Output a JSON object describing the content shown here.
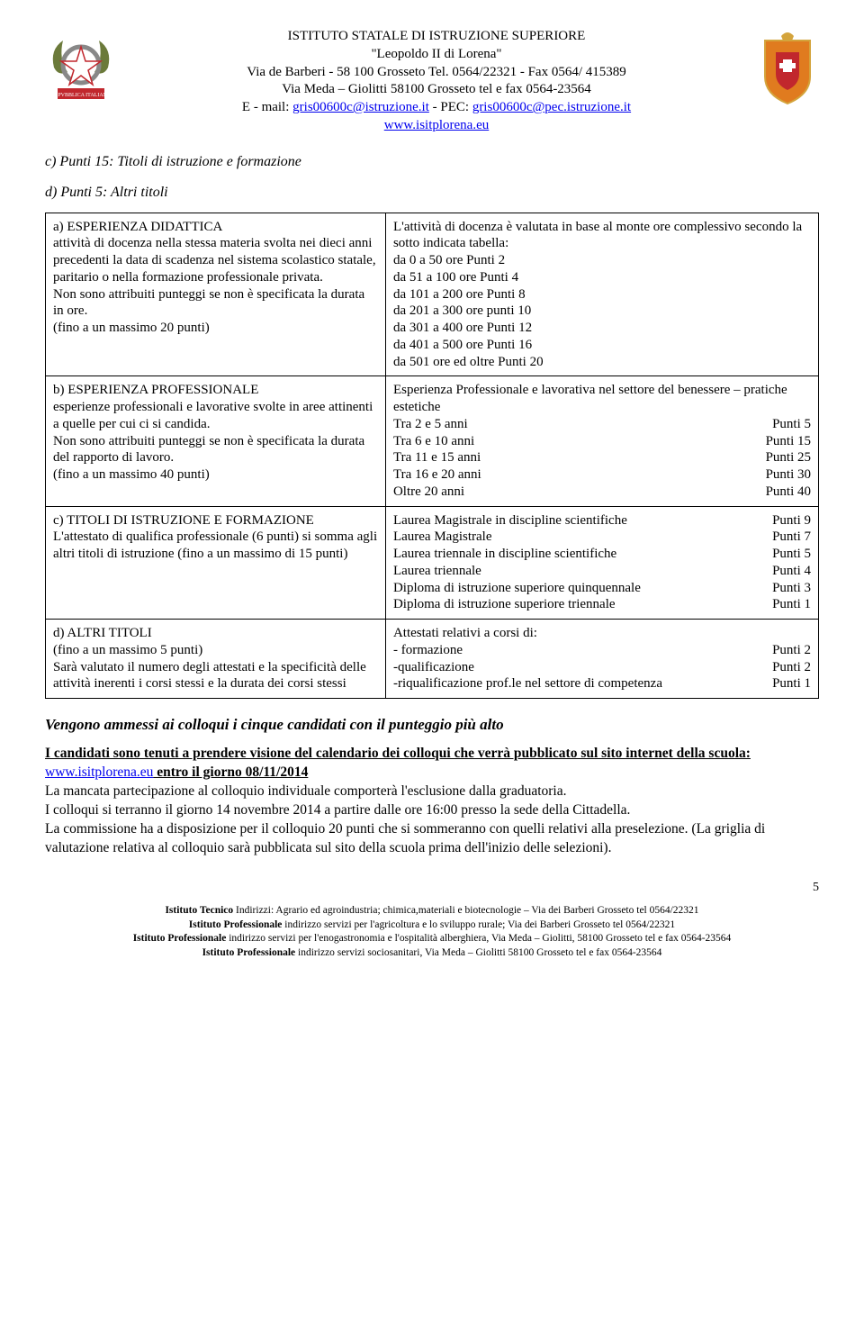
{
  "header": {
    "line1": "ISTITUTO STATALE DI ISTRUZIONE SUPERIORE",
    "line2": "\"Leopoldo II di Lorena\"",
    "line3": "Via de Barberi - 58 100 Grosseto Tel. 0564/22321 - Fax 0564/ 415389",
    "line4": "Via Meda – Giolitti 58100 Grosseto tel e fax 0564-23564",
    "line5_pre": "E - mail: ",
    "line5_email": "gris00600c@istruzione.it",
    "line5_mid": " - PEC: ",
    "line5_email2": "gris00600c@pec.istruzione.it",
    "line6": "www.isitplorena.eu"
  },
  "section_c": "c) Punti 15: Titoli di istruzione e formazione",
  "section_d": "d) Punti 5: Altri titoli",
  "row_a": {
    "left_title": "a) ESPERIENZA DIDATTICA",
    "left_body": "attività di docenza nella stessa materia svolta nei dieci anni precedenti la data di scadenza nel sistema scolastico statale, paritario o nella formazione professionale privata.\nNon sono attribuiti punteggi se non è specificata la durata in ore.\n(fino a un massimo 20 punti)",
    "right_intro": "L'attività di docenza è valutata in base al monte ore complessivo secondo la sotto indicata tabella:",
    "right_items": [
      "da 0 a 50 ore Punti 2",
      "da 51 a 100 ore Punti 4",
      "da 101 a 200 ore Punti 8",
      "da 201 a 300 ore punti 10",
      "da 301 a 400 ore Punti 12",
      "da 401 a 500 ore Punti 16",
      "da 501 ore ed oltre Punti 20"
    ]
  },
  "row_b": {
    "left_title": "b) ESPERIENZA PROFESSIONALE",
    "left_body": "esperienze professionali e lavorative svolte in aree attinenti a quelle per cui ci si candida.\nNon sono attribuiti punteggi se non è specificata la durata del rapporto di lavoro.\n(fino a un massimo 40 punti)",
    "right_intro": "Esperienza Professionale e lavorativa nel settore del benessere – pratiche estetiche",
    "right_rows": [
      {
        "label": "Tra 2 e 5 anni",
        "pts": "Punti 5"
      },
      {
        "label": "Tra 6 e 10 anni",
        "pts": "Punti 15"
      },
      {
        "label": "Tra 11 e 15 anni",
        "pts": "Punti 25"
      },
      {
        "label": "Tra 16 e 20 anni",
        "pts": "Punti 30"
      },
      {
        "label": "Oltre 20 anni",
        "pts": "Punti 40"
      }
    ]
  },
  "row_c": {
    "left_title": "c) TITOLI DI ISTRUZIONE E FORMAZIONE",
    "left_body": "L'attestato di qualifica professionale  (6 punti) si somma agli altri titoli di istruzione (fino a un massimo di 15 punti)",
    "right_rows": [
      {
        "label": "Laurea Magistrale in discipline scientifiche",
        "pts": "Punti 9"
      },
      {
        "label": "Laurea Magistrale",
        "pts": "Punti 7"
      },
      {
        "label": "Laurea triennale in discipline scientifiche",
        "pts": "Punti 5"
      },
      {
        "label": "Laurea triennale",
        "pts": "Punti 4"
      },
      {
        "label": "Diploma di istruzione superiore quinquennale",
        "pts": "Punti 3"
      },
      {
        "label": "Diploma di istruzione superiore triennale",
        "pts": "Punti 1"
      }
    ]
  },
  "row_d": {
    "left_title": "d) ALTRI TITOLI",
    "left_body": "(fino a un massimo 5 punti)\nSarà valutato il numero degli attestati e la specificità delle attività inerenti i corsi stessi e la durata dei corsi stessi",
    "right_intro": " Attestati relativi a corsi di:",
    "right_rows": [
      {
        "label": "- formazione",
        "pts": "Punti 2"
      },
      {
        "label": "-qualificazione",
        "pts": "Punti 2"
      },
      {
        "label": "-riqualificazione prof.le nel settore di competenza",
        "pts": "Punti 1"
      }
    ]
  },
  "admit_line": "Vengono ammessi ai colloqui i cinque candidati con il punteggio più alto",
  "candidates": {
    "u1": "I candidati sono tenuti a prendere visione del calendario dei colloqui che verrà pubblicato sul sito internet della scuola: ",
    "u_link": "www.isitplorena.eu",
    "u2": " entro il giorno 08/11/2014",
    "p1": "La mancata partecipazione al colloquio individuale comporterà l'esclusione dalla graduatoria.",
    "p2": "I  colloqui si terranno il giorno 14 novembre 2014 a partire dalle ore 16:00 presso la sede della Cittadella.",
    "p3": "La commissione ha a disposizione per il colloquio 20 punti che  si sommeranno con quelli relativi alla preselezione. (La griglia di valutazione relativa al colloquio sarà pubblicata sul sito della scuola prima dell'inizio delle selezioni)."
  },
  "page_num": "5",
  "footer": {
    "l1a": "Istituto Tecnico ",
    "l1b": "Indirizzi: Agrario ed agroindustria;  chimica,materiali e biotecnologie – Via dei Barberi Grosseto tel 0564/22321",
    "l2a": "Istituto Professionale ",
    "l2b": "indirizzo servizi per l'agricoltura e lo sviluppo  rurale; Via dei Barberi Grosseto tel 0564/22321",
    "l3a": "Istituto Professionale ",
    "l3b": "indirizzo servizi per l'enogastronomia e l'ospitalità alberghiera, Via Meda – Giolitti, 58100 Grosseto tel e fax 0564-23564",
    "l4a": "Istituto Professionale ",
    "l4b": "indirizzo servizi sociosanitari, Via Meda – Giolitti 58100 Grosseto tel e fax 0564-23564"
  },
  "colors": {
    "emblem_olive": "#6b7a3a",
    "emblem_red": "#c1272d",
    "emblem_gold": "#d4a43c",
    "emblem_blue": "#2a5caa",
    "crest_orange": "#e07b1f",
    "crest_red": "#c1272d",
    "crest_white": "#ffffff",
    "crest_gold": "#d4a43c"
  }
}
